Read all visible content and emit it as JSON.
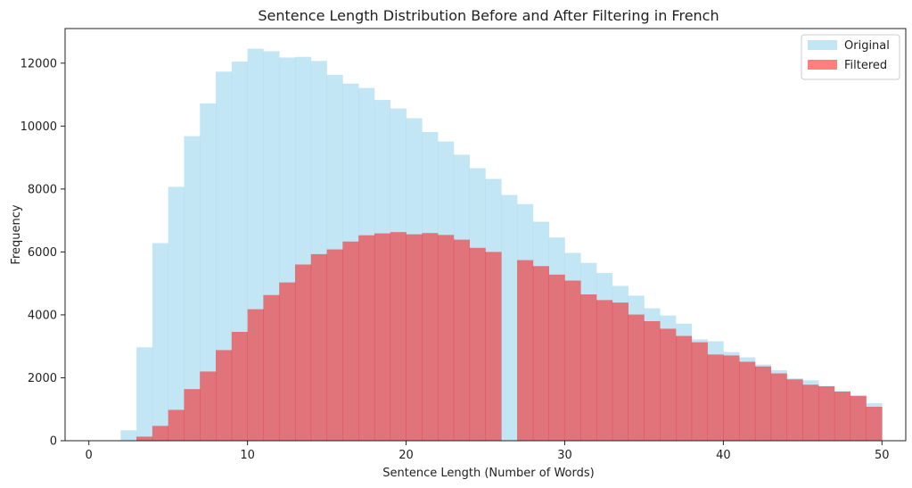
{
  "chart_data": {
    "type": "bar",
    "title": "Sentence Length Distribution Before and After Filtering in French",
    "xlabel": "Sentence Length (Number of Words)",
    "ylabel": "Frequency",
    "xlim": [
      -1.5,
      51.5
    ],
    "ylim": [
      0,
      13100
    ],
    "x_ticks": [
      0,
      10,
      20,
      30,
      40,
      50
    ],
    "y_ticks": [
      0,
      2000,
      4000,
      6000,
      8000,
      10000,
      12000
    ],
    "bin_width": 1,
    "legend_position": "top-right",
    "grid": false,
    "series": [
      {
        "name": "Original",
        "color": "#87ceeb",
        "opacity": 0.5,
        "bins_start": [
          0,
          1,
          2,
          3,
          4,
          5,
          6,
          7,
          8,
          9,
          10,
          11,
          12,
          13,
          14,
          15,
          16,
          17,
          18,
          19,
          20,
          21,
          22,
          23,
          24,
          25,
          26,
          27,
          28,
          29,
          30,
          31,
          32,
          33,
          34,
          35,
          36,
          37,
          38,
          39,
          40,
          41,
          42,
          43,
          44,
          45,
          46,
          47,
          48,
          49
        ],
        "values": [
          0,
          0,
          330,
          2970,
          6280,
          8070,
          9680,
          10720,
          11730,
          12050,
          12460,
          12380,
          12180,
          12200,
          12070,
          11630,
          11350,
          11210,
          10830,
          10560,
          10250,
          9810,
          9510,
          9090,
          8660,
          8320,
          7810,
          7520,
          6960,
          6460,
          5970,
          5650,
          5330,
          4920,
          4610,
          4210,
          3980,
          3720,
          3220,
          3160,
          2820,
          2650,
          2420,
          2240,
          1980,
          1920,
          1740,
          1580,
          1450,
          1230
        ],
        "last_bin_value": 1190
      },
      {
        "name": "Filtered",
        "color": "#ff0000",
        "opacity": 0.5,
        "bins_start": [
          0,
          1,
          2,
          3,
          4,
          5,
          6,
          7,
          8,
          9,
          10,
          11,
          12,
          13,
          14,
          15,
          16,
          17,
          18,
          19,
          20,
          21,
          22,
          23,
          24,
          25,
          26,
          27,
          28,
          29,
          30,
          31,
          32,
          33,
          34,
          35,
          36,
          37,
          38,
          39,
          40,
          41,
          42,
          43,
          44,
          45,
          46,
          47,
          48,
          49
        ],
        "values": [
          0,
          0,
          0,
          130,
          470,
          980,
          1640,
          2200,
          2880,
          3460,
          4180,
          4630,
          5030,
          5600,
          5930,
          6080,
          6330,
          6530,
          6590,
          6630,
          6560,
          6600,
          6540,
          6390,
          6130,
          6000,
          0,
          5740,
          5550,
          5280,
          5090,
          4650,
          4470,
          4390,
          4010,
          3800,
          3560,
          3330,
          3130,
          2740,
          2710,
          2510,
          2360,
          2140,
          1950,
          1780,
          1730,
          1560,
          1420,
          1280
        ],
        "last_bin_value": 1080
      }
    ]
  }
}
